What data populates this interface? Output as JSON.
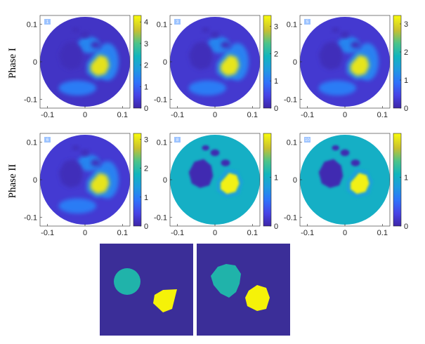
{
  "row_labels": [
    "Phase I",
    "Phase II"
  ],
  "axis_tick_labels": {
    "x": [
      "-0.1",
      "0",
      "0.1"
    ],
    "y": [
      "0.1",
      "0",
      "-0.1"
    ]
  },
  "panels": [
    {
      "id": "1",
      "colorbar_ticks": [
        "4",
        "3",
        "2",
        "1",
        "0"
      ],
      "cmax": 4.3,
      "bg_level": 0.28,
      "peak": 4.0
    },
    {
      "id": "3",
      "colorbar_ticks": [
        "3",
        "2",
        "1",
        "0"
      ],
      "cmax": 3.4,
      "bg_level": 0.3,
      "peak": 3.2
    },
    {
      "id": "5",
      "colorbar_ticks": [
        "3",
        "2",
        "1",
        "0"
      ],
      "cmax": 3.3,
      "bg_level": 0.3,
      "peak": 3.1
    },
    {
      "id": "6",
      "colorbar_ticks": [
        "3",
        "2",
        "1",
        "0"
      ],
      "cmax": 3.2,
      "bg_level": 0.3,
      "peak": 3.0
    },
    {
      "id": "8",
      "colorbar_ticks": [
        "1",
        "0"
      ],
      "cmax": 1.9,
      "bg_level": 1.0,
      "peak": 1.85
    },
    {
      "id": "10",
      "colorbar_ticks": [
        "1",
        "0"
      ],
      "cmax": 1.9,
      "bg_level": 1.0,
      "peak": 1.85
    }
  ],
  "colors": {
    "low": "#3e26a8",
    "high": "#f9fb0e",
    "truth_background": "#3b2e98",
    "truth_circle": "#20b3aa",
    "truth_polygon": "#f5f208"
  }
}
